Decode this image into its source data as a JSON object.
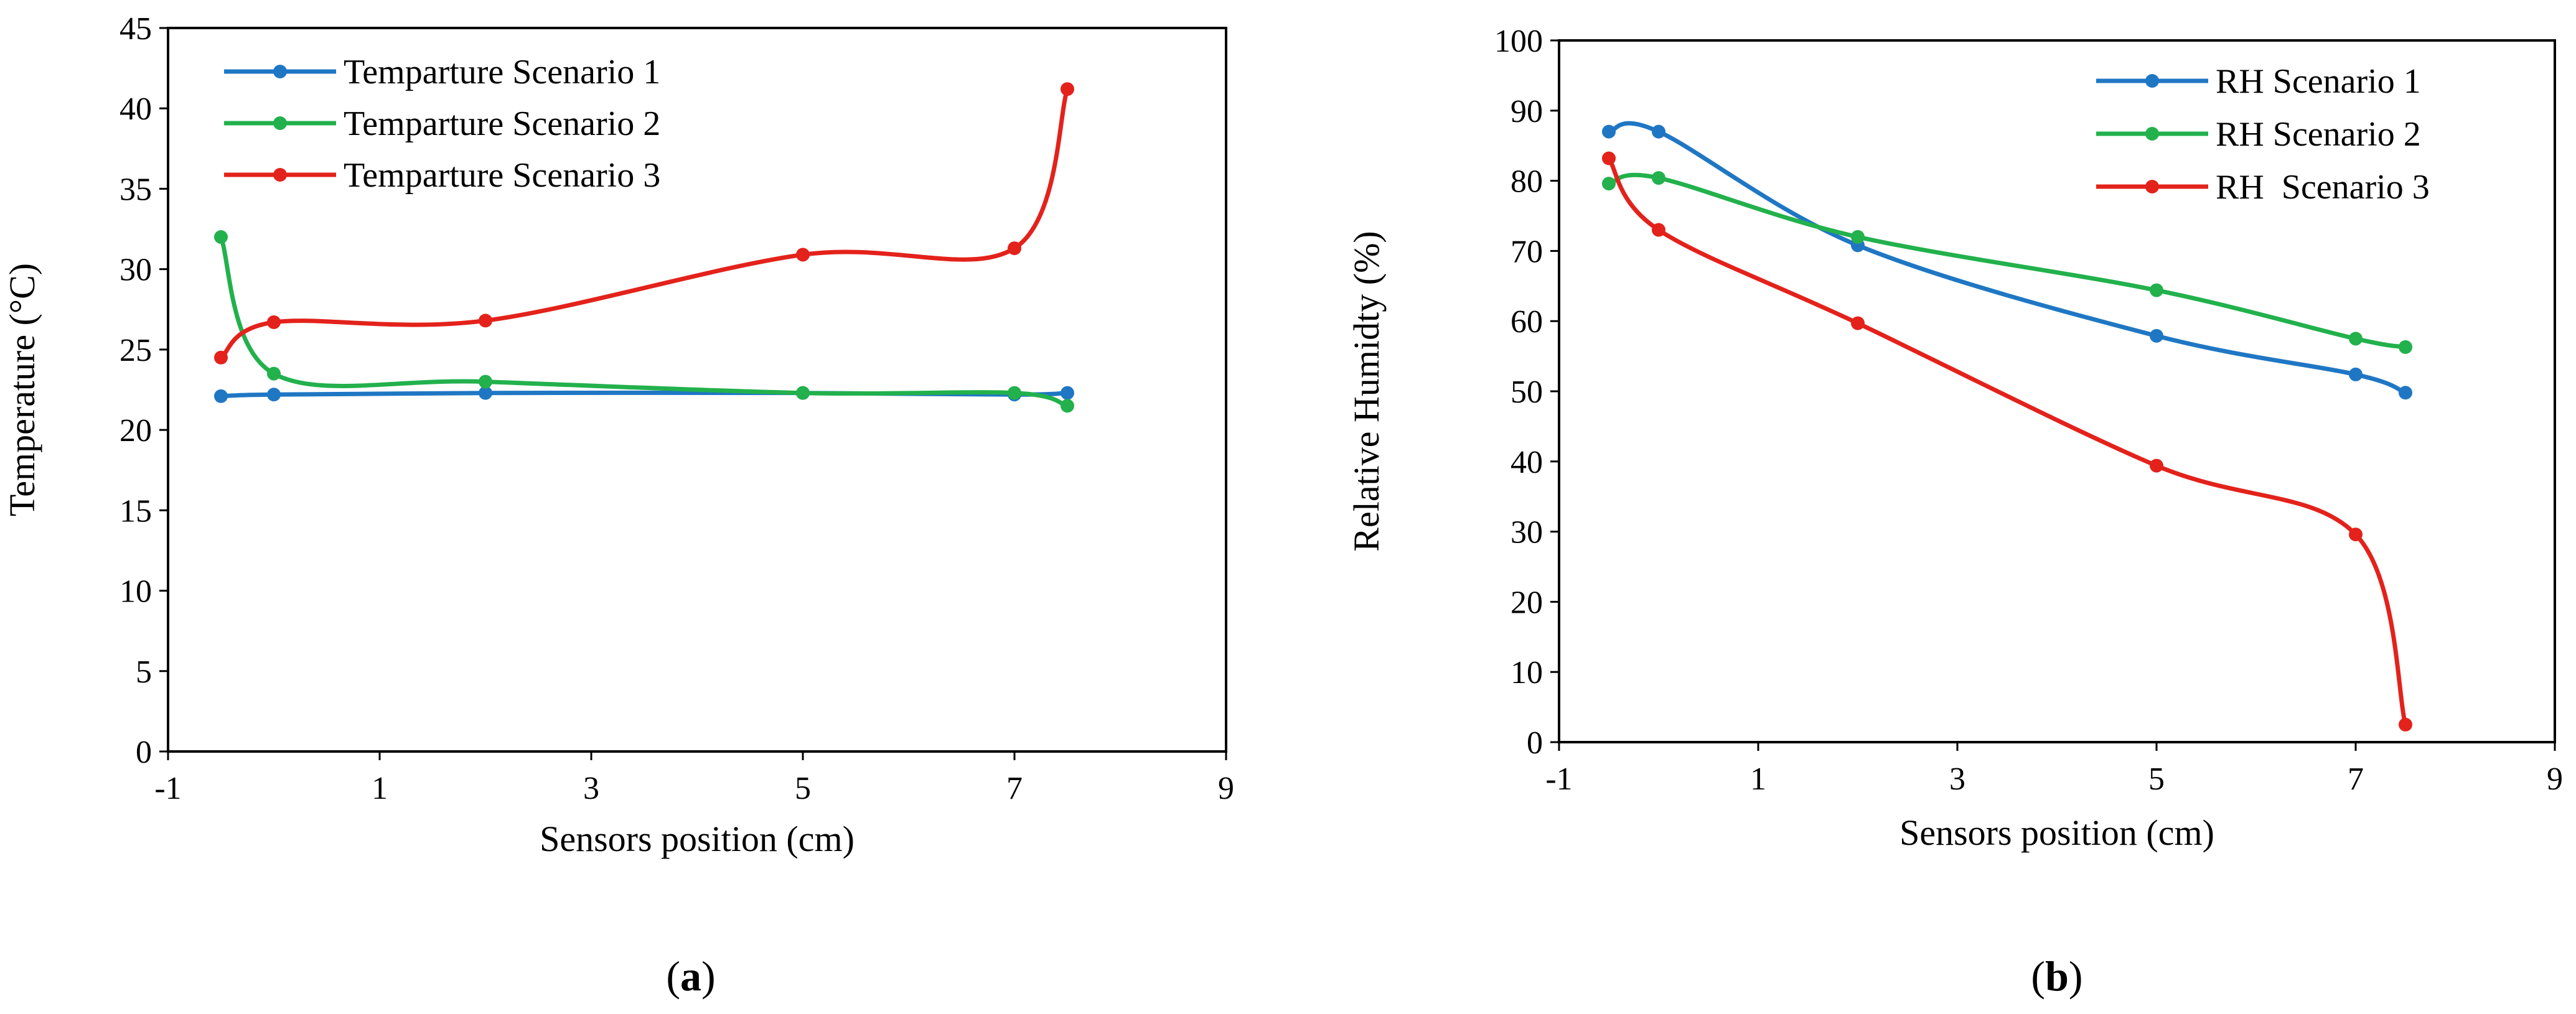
{
  "chart_data": [
    {
      "id": "a",
      "type": "line",
      "caption": "a",
      "xlabel": "Sensors position (cm)",
      "ylabel": "Temperature (°C)",
      "xlim": [
        -1,
        9
      ],
      "ylim": [
        0,
        45
      ],
      "xticks": [
        -1,
        1,
        3,
        5,
        7,
        9
      ],
      "yticks": [
        0,
        5,
        10,
        15,
        20,
        25,
        30,
        35,
        40,
        45
      ],
      "grid": false,
      "legend_position": "top-left",
      "x": [
        -0.5,
        0,
        2,
        5,
        7,
        7.5
      ],
      "series": [
        {
          "name": "Temparture Scenario 1",
          "color": "#1f77c4",
          "values": [
            22.1,
            22.2,
            22.3,
            22.3,
            22.2,
            22.3
          ]
        },
        {
          "name": "Temparture Scenario 2",
          "color": "#22b14c",
          "values": [
            32.0,
            23.5,
            23.0,
            22.3,
            22.3,
            21.5
          ]
        },
        {
          "name": "Temparture Scenario 3",
          "color": "#e3221b",
          "values": [
            24.5,
            26.7,
            26.8,
            30.9,
            31.3,
            41.2
          ]
        }
      ]
    },
    {
      "id": "b",
      "type": "line",
      "caption": "b",
      "xlabel": "Sensors position (cm)",
      "ylabel": "Relative Humidty (%)",
      "xlim": [
        -1,
        9
      ],
      "ylim": [
        0,
        100
      ],
      "xticks": [
        -1,
        1,
        3,
        5,
        7,
        9
      ],
      "yticks": [
        0,
        10,
        20,
        30,
        40,
        50,
        60,
        70,
        80,
        90,
        100
      ],
      "grid": false,
      "legend_position": "top-right",
      "x": [
        -0.5,
        0,
        2,
        5,
        7,
        7.5
      ],
      "series": [
        {
          "name": "RH Scenario 1",
          "color": "#1f77c4",
          "values": [
            87.0,
            87.0,
            70.8,
            57.9,
            52.4,
            49.8
          ]
        },
        {
          "name": "RH Scenario 2",
          "color": "#22b14c",
          "values": [
            79.6,
            80.4,
            72.0,
            64.4,
            57.5,
            56.3
          ]
        },
        {
          "name": "RH  Scenario 3",
          "color": "#e3221b",
          "values": [
            83.2,
            73.0,
            59.7,
            39.4,
            29.6,
            2.5
          ]
        }
      ]
    }
  ]
}
